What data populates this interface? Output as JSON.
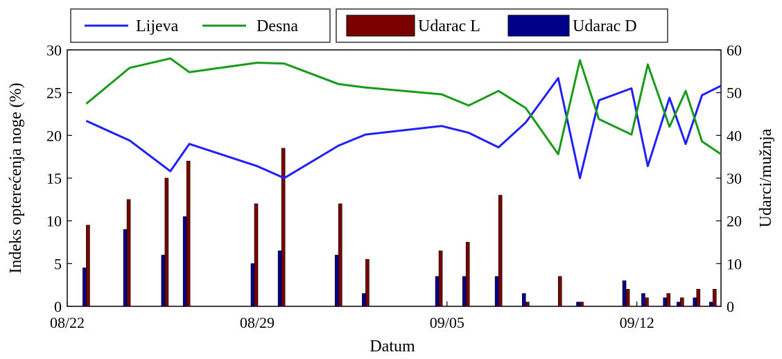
{
  "chart_data": {
    "type": "line",
    "xlabel": "Datum",
    "ylabel_left": "Indeks opterećenja noge (%)",
    "ylabel_right": "Udarci/mužnja",
    "x_ticks": [
      "08/22",
      "08/29",
      "09/05",
      "09/12"
    ],
    "y_left_ticks": [
      "0",
      "5",
      "10",
      "15",
      "20",
      "25",
      "30"
    ],
    "y_right_ticks": [
      "0",
      "10",
      "20",
      "30",
      "40",
      "50",
      "60"
    ],
    "ylim_left": [
      0,
      30
    ],
    "ylim_right": [
      0,
      60
    ],
    "xlim_days": [
      0,
      24.1
    ],
    "legend_lines": [
      {
        "name": "Lijeva",
        "color": "#1f1fff"
      },
      {
        "name": "Desna",
        "color": "#1a9a1a"
      }
    ],
    "legend_bars": [
      {
        "name": "Udarac L",
        "color": "#7a0000"
      },
      {
        "name": "Udarac D",
        "color": "#00008b"
      }
    ],
    "series": [
      {
        "name": "Lijeva",
        "axis": "left",
        "x": [
          0.7,
          2.3,
          3.8,
          4.5,
          7.0,
          8.0,
          10.0,
          11.0,
          13.8,
          14.8,
          15.9,
          16.9,
          18.1,
          18.9,
          19.6,
          20.8,
          21.4,
          22.2,
          22.8,
          23.4,
          24.1
        ],
        "y": [
          21.7,
          19.4,
          15.8,
          19.0,
          16.4,
          15.0,
          18.8,
          20.1,
          21.1,
          20.3,
          18.6,
          21.5,
          26.7,
          15.0,
          24.1,
          25.5,
          16.4,
          24.4,
          19.0,
          24.7,
          25.8
        ]
      },
      {
        "name": "Desna",
        "axis": "left",
        "x": [
          0.7,
          2.3,
          3.8,
          4.5,
          7.0,
          8.0,
          10.0,
          11.0,
          13.8,
          14.8,
          15.9,
          16.9,
          18.1,
          18.9,
          19.6,
          20.8,
          21.4,
          22.2,
          22.8,
          23.4,
          24.1
        ],
        "y": [
          23.7,
          27.9,
          29.0,
          27.4,
          28.5,
          28.4,
          26.0,
          25.6,
          24.8,
          23.5,
          25.2,
          23.2,
          17.8,
          28.8,
          21.9,
          20.1,
          28.3,
          21.0,
          25.2,
          19.3,
          17.8
        ]
      }
    ],
    "bars": {
      "axis": "right",
      "x": [
        0.7,
        2.2,
        3.6,
        4.4,
        6.9,
        7.9,
        10.0,
        11.0,
        13.7,
        14.7,
        15.9,
        16.9,
        18.1,
        18.9,
        20.6,
        21.3,
        22.1,
        22.6,
        23.2,
        23.8
      ],
      "udarac_l": [
        19,
        25,
        30,
        34,
        24,
        37,
        24,
        11,
        13,
        15,
        26,
        1,
        7,
        1,
        4,
        2,
        3,
        2,
        4,
        4
      ],
      "udarac_d": [
        9,
        18,
        12,
        21,
        10,
        13,
        12,
        3,
        7,
        7,
        7,
        3,
        0,
        1,
        6,
        3,
        2,
        1,
        2,
        1
      ]
    }
  }
}
